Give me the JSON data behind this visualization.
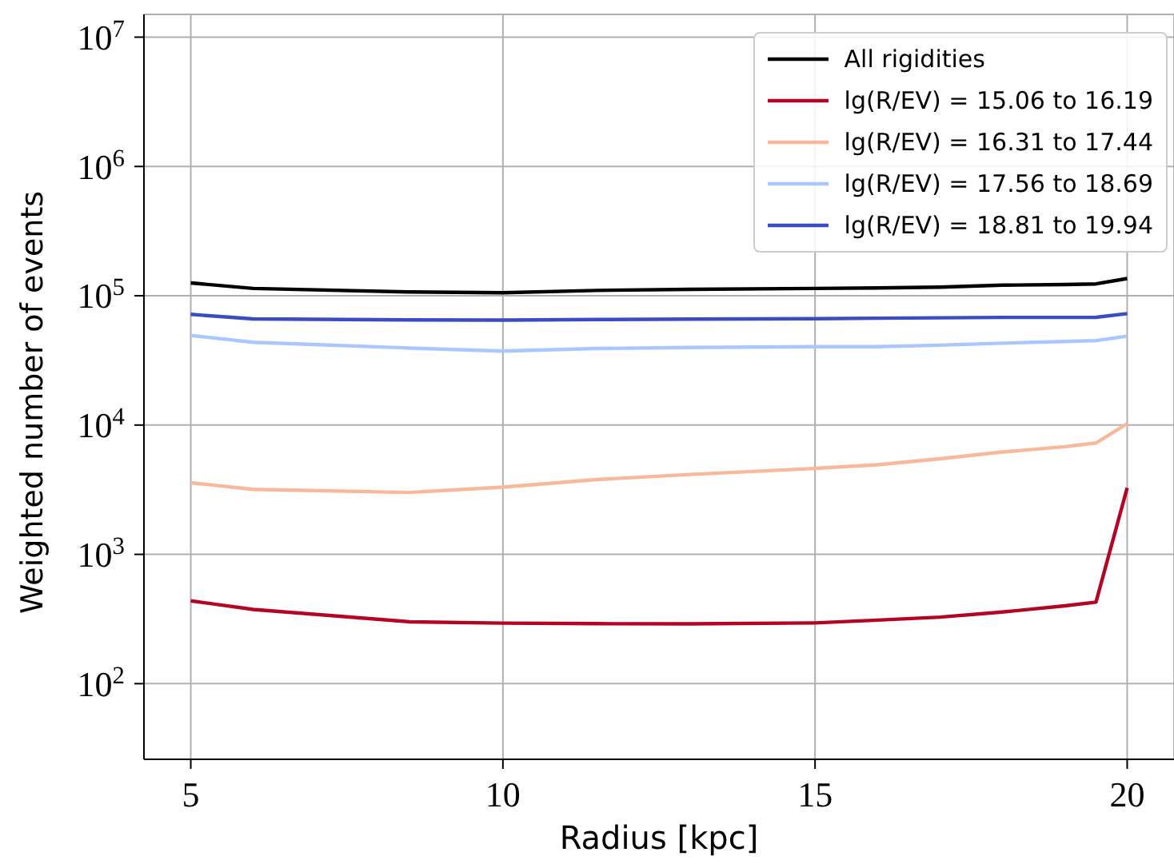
{
  "chart_data": {
    "type": "line",
    "xlabel": "Radius [kpc]",
    "ylabel": "Weighted number of events",
    "x": [
      5,
      6,
      8.5,
      10,
      11.5,
      13,
      15,
      16,
      17,
      18,
      19,
      19.5,
      20
    ],
    "series": [
      {
        "name": "All rigidities",
        "color": "#000000",
        "values": [
          125600,
          114000,
          107000,
          105500,
          110000,
          112000,
          114000,
          115000,
          116500,
          120700,
          122000,
          123500,
          135800
        ]
      },
      {
        "name": "lg(R/EV) = 15.06 to 16.19",
        "color": "#b40426",
        "values": [
          437,
          375,
          301,
          294,
          291,
          290,
          295,
          310,
          327,
          358,
          400,
          427,
          3270
        ]
      },
      {
        "name": "lg(R/EV) = 16.31 to 17.44",
        "color": "#f7b89c",
        "values": [
          3580,
          3180,
          3010,
          3310,
          3790,
          4150,
          4620,
          4930,
          5490,
          6190,
          6800,
          7260,
          10260
        ]
      },
      {
        "name": "lg(R/EV) = 17.56 to 18.69",
        "color": "#aac7fd",
        "values": [
          49300,
          43700,
          39400,
          37300,
          39100,
          39800,
          40400,
          40400,
          41500,
          43000,
          44300,
          45000,
          48700
        ]
      },
      {
        "name": "lg(R/EV) = 18.81 to 19.94",
        "color": "#3b4cc0",
        "values": [
          71800,
          66200,
          65000,
          64800,
          65500,
          66000,
          66500,
          67000,
          67500,
          68000,
          68000,
          68100,
          72800
        ]
      }
    ],
    "xlim": [
      4.25,
      20.75
    ],
    "xticks": [
      5,
      10,
      15,
      20
    ],
    "ylim": [
      26,
      15000000
    ],
    "yticks": [
      {
        "value": 100,
        "label": "10$^{2}$"
      },
      {
        "value": 1000,
        "label": "10$^{3}$"
      },
      {
        "value": 10000,
        "label": "10$^{4}$"
      },
      {
        "value": 100000,
        "label": "10$^{5}$"
      },
      {
        "value": 1000000,
        "label": "10$^{6}$"
      },
      {
        "value": 10000000,
        "label": "10$^{7}$"
      }
    ],
    "log": "y",
    "grid": true,
    "legend": "top right",
    "marker": "none",
    "line_style": "solid"
  }
}
